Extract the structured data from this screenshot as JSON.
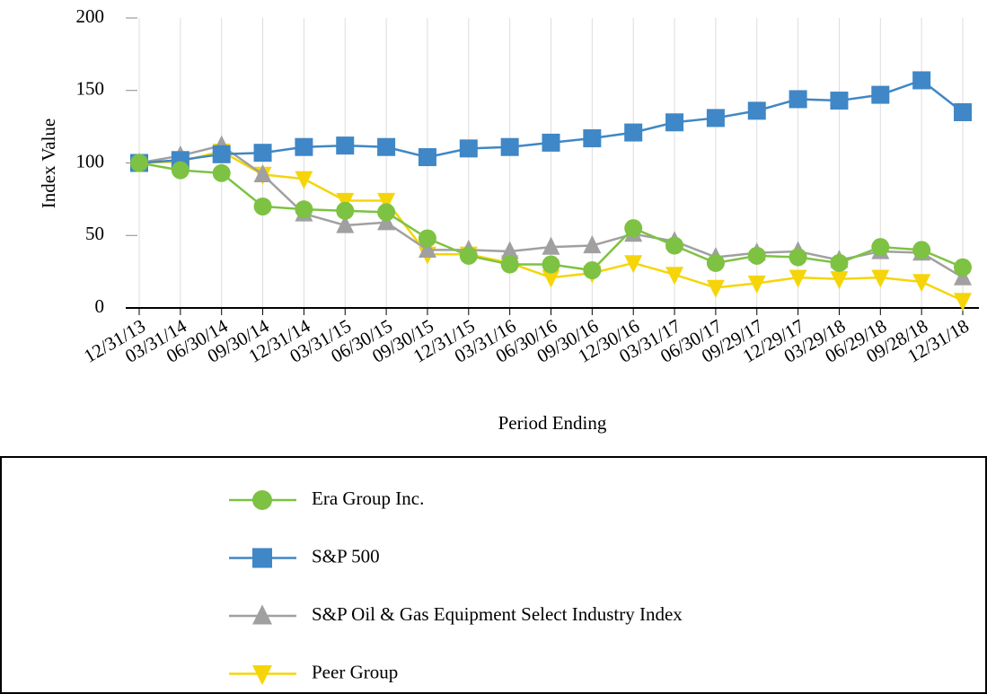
{
  "chart_data": {
    "type": "line",
    "ylabel": "Index Value",
    "xlabel": "Period Ending",
    "categories": [
      "12/31/13",
      "03/31/14",
      "06/30/14",
      "09/30/14",
      "12/31/14",
      "03/31/15",
      "06/30/15",
      "09/30/15",
      "12/31/15",
      "03/31/16",
      "06/30/16",
      "09/30/16",
      "12/30/16",
      "03/31/17",
      "06/30/17",
      "09/29/17",
      "12/29/17",
      "03/29/18",
      "06/29/18",
      "09/28/18",
      "12/31/18"
    ],
    "series": [
      {
        "name": "Era Group Inc.",
        "color": "#7dc242",
        "marker": "circle",
        "values": [
          100,
          95,
          93,
          70,
          68,
          67,
          66,
          48,
          36,
          30,
          30,
          26,
          55,
          43,
          31,
          36,
          35,
          31,
          42,
          40,
          28
        ]
      },
      {
        "name": "S&P 500",
        "color": "#3f87c6",
        "marker": "square",
        "values": [
          100,
          102,
          106,
          107,
          111,
          112,
          111,
          104,
          110,
          111,
          114,
          117,
          121,
          128,
          131,
          136,
          144,
          143,
          147,
          157,
          135
        ]
      },
      {
        "name": "S&P Oil & Gas Equipment Select Industry Index",
        "color": "#a0a0a0",
        "marker": "triangle-up",
        "values": [
          100,
          105,
          112,
          92,
          65,
          57,
          59,
          40,
          40,
          39,
          42,
          43,
          51,
          46,
          35,
          38,
          39,
          33,
          39,
          38,
          21
        ]
      },
      {
        "name": "Peer Group",
        "color": "#f5d50a",
        "marker": "triangle-down",
        "values": [
          100,
          101,
          108,
          92,
          89,
          74,
          74,
          37,
          37,
          31,
          21,
          24,
          31,
          23,
          14,
          17,
          21,
          20,
          21,
          18,
          5
        ]
      }
    ],
    "ylim": [
      0,
      200
    ],
    "yticks": [
      0,
      50,
      100,
      150,
      200
    ],
    "grid": true,
    "legend": "bottom"
  }
}
